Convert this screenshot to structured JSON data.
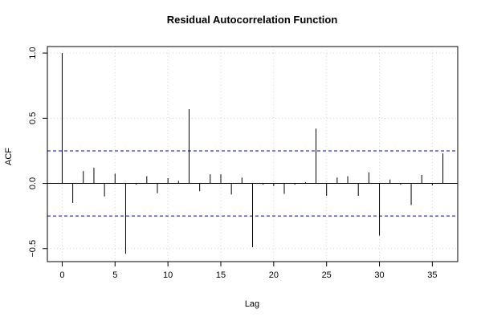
{
  "chart_data": {
    "type": "bar",
    "title": "Residual Autocorrelation Function",
    "xlabel": "Lag",
    "ylabel": "ACF",
    "xlim": [
      -1.4,
      37.4
    ],
    "ylim": [
      -0.6,
      1.05
    ],
    "x_ticks": [
      0,
      5,
      10,
      15,
      20,
      25,
      30,
      35
    ],
    "y_ticks": [
      -0.5,
      0.0,
      0.5,
      1.0
    ],
    "y_tick_labels": [
      "−0.5",
      "0.0",
      "0.5",
      "1.0"
    ],
    "grid": true,
    "confidence_limits": [
      0.25,
      -0.25
    ],
    "lags": [
      0,
      1,
      2,
      3,
      4,
      5,
      6,
      7,
      8,
      9,
      10,
      11,
      12,
      13,
      14,
      15,
      16,
      17,
      18,
      19,
      20,
      21,
      22,
      23,
      24,
      25,
      26,
      27,
      28,
      29,
      30,
      31,
      32,
      33,
      34,
      35,
      36
    ],
    "values": [
      1.0,
      -0.15,
      0.095,
      0.12,
      -0.1,
      0.075,
      -0.54,
      -0.01,
      0.055,
      -0.075,
      0.04,
      0.02,
      0.57,
      -0.06,
      0.07,
      0.07,
      -0.085,
      0.045,
      -0.49,
      -0.01,
      -0.02,
      -0.08,
      -0.01,
      0.01,
      0.42,
      -0.095,
      0.045,
      0.055,
      -0.095,
      0.085,
      -0.4,
      0.03,
      -0.01,
      -0.165,
      0.065,
      -0.015,
      0.23
    ],
    "colors": {
      "bars": "#000000",
      "confidence": "#0000cc",
      "grid": "#d3d3d3",
      "axis": "#000000"
    }
  }
}
